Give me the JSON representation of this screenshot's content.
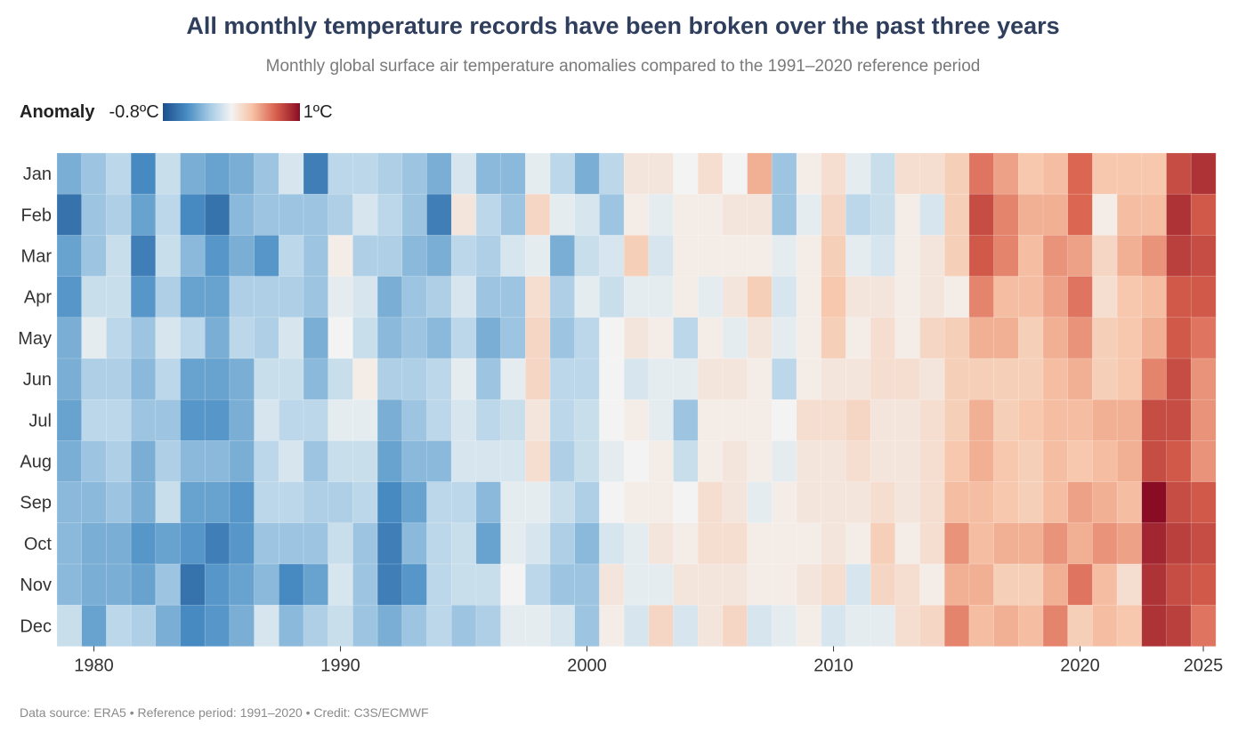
{
  "title": "All monthly temperature records have been broken over the past three years",
  "subtitle": "Monthly global surface air temperature anomalies compared to the 1991–2020 reference period",
  "legend": {
    "title": "Anomaly",
    "min_label": "-0.8ºC",
    "max_label": "1ºC"
  },
  "footer": "Data source: ERA5 • Reference period: 1991–2020 • Credit: C3S/ECMWF",
  "chart_data": {
    "type": "heatmap",
    "title": "All monthly temperature records have been broken over the past three years",
    "color_range": [
      -0.8,
      1.0
    ],
    "colors": [
      "#1c4e8e",
      "#4a8ec4",
      "#a9cde5",
      "#f3f3f3",
      "#f7c3a6",
      "#d9624e",
      "#8a0c24"
    ],
    "months": [
      "Jan",
      "Feb",
      "Mar",
      "Apr",
      "May",
      "Jun",
      "Jul",
      "Aug",
      "Sep",
      "Oct",
      "Nov",
      "Dec"
    ],
    "years": [
      1979,
      1980,
      1981,
      1982,
      1983,
      1984,
      1985,
      1986,
      1987,
      1988,
      1989,
      1990,
      1991,
      1992,
      1993,
      1994,
      1995,
      1996,
      1997,
      1998,
      1999,
      2000,
      2001,
      2002,
      2003,
      2004,
      2005,
      2006,
      2007,
      2008,
      2009,
      2010,
      2011,
      2012,
      2013,
      2014,
      2015,
      2016,
      2017,
      2018,
      2019,
      2020,
      2021,
      2022,
      2023,
      2024,
      2025
    ],
    "x_ticks": [
      "1980",
      "1990",
      "2000",
      "2010",
      "2020",
      "2025"
    ],
    "values": {
      "Jan": [
        -0.4,
        -0.3,
        -0.2,
        -0.55,
        -0.15,
        -0.4,
        -0.45,
        -0.4,
        -0.3,
        -0.1,
        -0.6,
        -0.2,
        -0.2,
        -0.25,
        -0.3,
        -0.4,
        -0.1,
        -0.35,
        -0.35,
        -0.05,
        -0.2,
        -0.4,
        -0.2,
        0.1,
        0.1,
        0.0,
        0.15,
        0.0,
        0.4,
        -0.3,
        0.05,
        0.15,
        -0.05,
        -0.15,
        0.15,
        0.15,
        0.25,
        0.6,
        0.45,
        0.3,
        0.35,
        0.65,
        0.3,
        0.3,
        0.3,
        0.75,
        0.85
      ],
      "Feb": [
        -0.65,
        -0.3,
        -0.25,
        -0.45,
        -0.2,
        -0.55,
        -0.65,
        -0.35,
        -0.3,
        -0.3,
        -0.3,
        -0.25,
        -0.1,
        -0.2,
        -0.3,
        -0.6,
        0.1,
        -0.2,
        -0.3,
        0.2,
        -0.05,
        -0.1,
        -0.3,
        0.05,
        -0.05,
        0.05,
        0.05,
        0.1,
        0.1,
        -0.3,
        -0.05,
        0.2,
        -0.2,
        -0.15,
        0.05,
        -0.1,
        0.25,
        0.75,
        0.55,
        0.4,
        0.4,
        0.65,
        0.05,
        0.35,
        0.35,
        0.85,
        0.7
      ],
      "Mar": [
        -0.45,
        -0.3,
        -0.15,
        -0.6,
        -0.15,
        -0.35,
        -0.5,
        -0.4,
        -0.5,
        -0.2,
        -0.3,
        0.05,
        -0.25,
        -0.25,
        -0.35,
        -0.4,
        -0.2,
        -0.25,
        -0.1,
        -0.05,
        -0.4,
        -0.15,
        -0.1,
        0.25,
        -0.1,
        0.05,
        0.05,
        0.05,
        0.05,
        -0.05,
        0.05,
        0.25,
        -0.05,
        -0.1,
        0.05,
        0.1,
        0.25,
        0.7,
        0.55,
        0.35,
        0.5,
        0.45,
        0.2,
        0.4,
        0.5,
        0.8,
        0.75
      ],
      "Apr": [
        -0.5,
        -0.15,
        -0.15,
        -0.5,
        -0.25,
        -0.45,
        -0.45,
        -0.25,
        -0.25,
        -0.25,
        -0.3,
        -0.05,
        -0.1,
        -0.4,
        -0.3,
        -0.25,
        -0.1,
        -0.3,
        -0.3,
        0.15,
        -0.25,
        -0.05,
        -0.15,
        -0.05,
        -0.05,
        0.05,
        -0.05,
        0.1,
        0.25,
        -0.1,
        0.05,
        0.3,
        0.1,
        0.1,
        0.05,
        0.1,
        0.05,
        0.55,
        0.35,
        0.35,
        0.45,
        0.6,
        0.15,
        0.3,
        0.35,
        0.7,
        0.7
      ],
      "May": [
        -0.4,
        -0.05,
        -0.2,
        -0.3,
        -0.1,
        -0.2,
        -0.4,
        -0.2,
        -0.25,
        -0.1,
        -0.4,
        0.0,
        -0.15,
        -0.35,
        -0.3,
        -0.35,
        -0.2,
        -0.4,
        -0.3,
        0.2,
        -0.3,
        -0.2,
        0.0,
        0.1,
        0.05,
        -0.2,
        0.05,
        -0.05,
        0.1,
        -0.05,
        0.05,
        0.25,
        0.05,
        0.15,
        0.05,
        0.2,
        0.25,
        0.4,
        0.4,
        0.25,
        0.4,
        0.5,
        0.25,
        0.3,
        0.4,
        0.7,
        0.6
      ],
      "Jun": [
        -0.4,
        -0.25,
        -0.25,
        -0.35,
        -0.2,
        -0.45,
        -0.45,
        -0.4,
        -0.15,
        -0.15,
        -0.35,
        -0.15,
        0.05,
        -0.25,
        -0.25,
        -0.2,
        -0.05,
        -0.3,
        -0.05,
        0.2,
        -0.2,
        -0.2,
        0.0,
        -0.1,
        -0.05,
        -0.05,
        0.1,
        0.1,
        0.05,
        -0.2,
        0.05,
        0.1,
        0.1,
        0.15,
        0.15,
        0.1,
        0.25,
        0.25,
        0.25,
        0.25,
        0.35,
        0.4,
        0.25,
        0.3,
        0.55,
        0.75,
        0.5
      ],
      "Jul": [
        -0.45,
        -0.2,
        -0.2,
        -0.3,
        -0.3,
        -0.5,
        -0.5,
        -0.4,
        -0.1,
        -0.2,
        -0.2,
        -0.05,
        -0.05,
        -0.4,
        -0.3,
        -0.2,
        -0.1,
        -0.2,
        -0.15,
        0.1,
        -0.2,
        -0.15,
        0.0,
        0.05,
        -0.05,
        -0.3,
        0.05,
        0.05,
        0.05,
        0.0,
        0.15,
        0.15,
        0.2,
        0.1,
        0.1,
        0.15,
        0.25,
        0.4,
        0.25,
        0.3,
        0.35,
        0.35,
        0.4,
        0.4,
        0.75,
        0.75,
        0.5
      ],
      "Aug": [
        -0.4,
        -0.3,
        -0.25,
        -0.4,
        -0.25,
        -0.35,
        -0.35,
        -0.4,
        -0.2,
        -0.1,
        -0.3,
        -0.15,
        -0.15,
        -0.45,
        -0.35,
        -0.35,
        -0.1,
        -0.1,
        -0.1,
        0.15,
        -0.25,
        -0.15,
        -0.05,
        0.0,
        0.05,
        -0.15,
        0.05,
        0.1,
        0.05,
        -0.05,
        0.1,
        0.1,
        0.15,
        0.1,
        0.1,
        0.15,
        0.3,
        0.4,
        0.3,
        0.25,
        0.35,
        0.3,
        0.35,
        0.4,
        0.75,
        0.7,
        0.5
      ],
      "Sep": [
        -0.35,
        -0.35,
        -0.3,
        -0.4,
        -0.15,
        -0.45,
        -0.45,
        -0.5,
        -0.2,
        -0.2,
        -0.25,
        -0.25,
        -0.2,
        -0.55,
        -0.45,
        -0.2,
        -0.2,
        -0.35,
        -0.05,
        -0.05,
        -0.15,
        -0.25,
        0.0,
        0.05,
        0.05,
        0.0,
        0.15,
        0.1,
        -0.05,
        0.05,
        0.1,
        0.1,
        0.1,
        0.15,
        0.1,
        0.15,
        0.35,
        0.35,
        0.3,
        0.25,
        0.35,
        0.45,
        0.4,
        0.35,
        1.0,
        0.75,
        0.7
      ],
      "Oct": [
        -0.35,
        -0.4,
        -0.4,
        -0.5,
        -0.45,
        -0.5,
        -0.6,
        -0.5,
        -0.3,
        -0.3,
        -0.3,
        -0.15,
        -0.3,
        -0.6,
        -0.35,
        -0.2,
        -0.15,
        -0.45,
        -0.05,
        -0.1,
        -0.25,
        -0.35,
        -0.1,
        -0.05,
        0.1,
        0.05,
        0.15,
        0.15,
        0.05,
        0.05,
        0.05,
        0.1,
        0.05,
        0.25,
        0.05,
        0.15,
        0.5,
        0.35,
        0.4,
        0.4,
        0.5,
        0.4,
        0.5,
        0.45,
        0.9,
        0.8,
        0.75
      ],
      "Nov": [
        -0.35,
        -0.4,
        -0.4,
        -0.45,
        -0.3,
        -0.65,
        -0.5,
        -0.45,
        -0.35,
        -0.55,
        -0.45,
        -0.1,
        -0.3,
        -0.6,
        -0.5,
        -0.2,
        -0.15,
        -0.15,
        0.0,
        -0.2,
        -0.3,
        -0.3,
        0.1,
        -0.05,
        -0.05,
        0.1,
        0.1,
        0.1,
        0.05,
        0.05,
        0.1,
        0.15,
        -0.1,
        0.2,
        0.15,
        0.05,
        0.4,
        0.4,
        0.25,
        0.25,
        0.4,
        0.6,
        0.35,
        0.15,
        0.85,
        0.75,
        0.7
      ],
      "Dec": [
        -0.15,
        -0.45,
        -0.2,
        -0.25,
        -0.4,
        -0.55,
        -0.5,
        -0.4,
        -0.1,
        -0.35,
        -0.25,
        -0.15,
        -0.3,
        -0.4,
        -0.3,
        -0.2,
        -0.3,
        -0.25,
        -0.05,
        -0.05,
        -0.1,
        -0.3,
        0.05,
        -0.1,
        0.2,
        -0.1,
        0.1,
        0.2,
        -0.1,
        -0.05,
        0.05,
        -0.1,
        -0.05,
        -0.05,
        0.15,
        0.2,
        0.55,
        0.35,
        0.4,
        0.35,
        0.55,
        0.25,
        0.35,
        0.3,
        0.85,
        0.8,
        0.6
      ]
    }
  }
}
